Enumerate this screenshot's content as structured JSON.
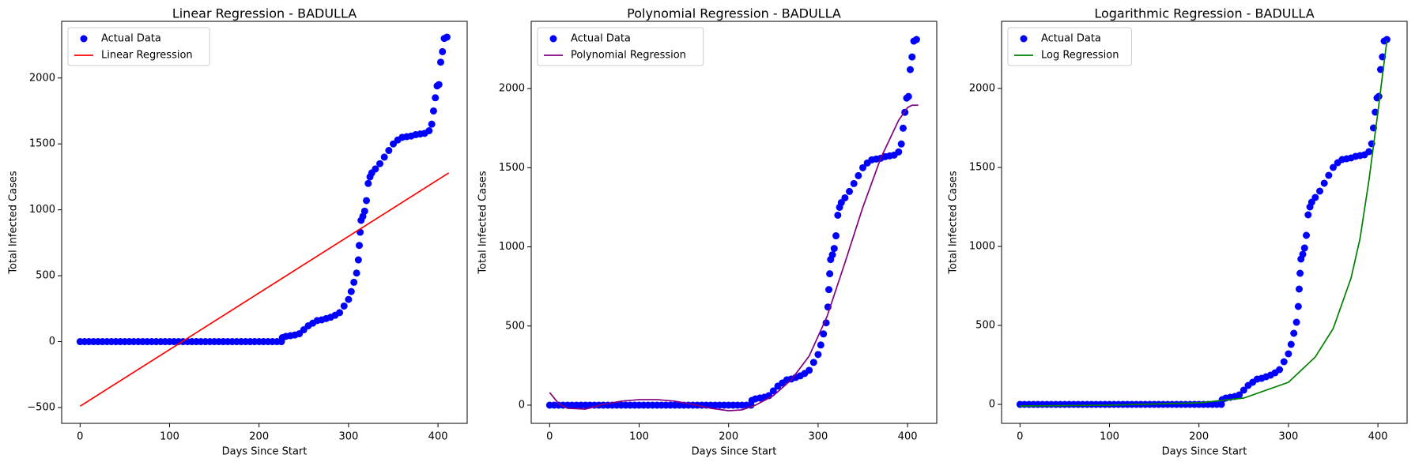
{
  "chart_data": [
    {
      "type": "scatter",
      "title": "Linear Regression - BADULLA",
      "x_label": "Days Since Start",
      "y_label": "Total Infected Cases",
      "xlim": [
        -20.6,
        432.6
      ],
      "ylim": [
        -620,
        2430
      ],
      "xticks": [
        0,
        100,
        200,
        300,
        400
      ],
      "yticks": [
        {
          "value": -500,
          "label": "−500"
        },
        0,
        500,
        1000,
        1500,
        2000
      ],
      "legend": "upper left",
      "series": [
        {
          "name": "Actual Data",
          "type": "scatter",
          "color": "#0000ff",
          "x": [
            0,
            5,
            10,
            15,
            20,
            25,
            30,
            35,
            40,
            45,
            50,
            55,
            60,
            65,
            70,
            75,
            80,
            85,
            90,
            95,
            100,
            105,
            110,
            115,
            120,
            125,
            130,
            135,
            140,
            145,
            150,
            155,
            160,
            165,
            170,
            175,
            180,
            185,
            190,
            195,
            200,
            205,
            210,
            215,
            220,
            225,
            226,
            230,
            235,
            240,
            245,
            250,
            255,
            260,
            265,
            270,
            275,
            280,
            285,
            290,
            295,
            300,
            303,
            306,
            309,
            311,
            312,
            313,
            314,
            316,
            318,
            320,
            322,
            324,
            326,
            330,
            335,
            340,
            345,
            350,
            355,
            360,
            365,
            370,
            375,
            380,
            385,
            390,
            393,
            395,
            397,
            399,
            401,
            403,
            405,
            407,
            410
          ],
          "values": [
            0,
            0,
            0,
            0,
            0,
            0,
            0,
            0,
            0,
            0,
            0,
            0,
            0,
            0,
            0,
            0,
            0,
            0,
            0,
            0,
            0,
            0,
            0,
            0,
            0,
            0,
            0,
            0,
            0,
            0,
            0,
            0,
            0,
            0,
            0,
            0,
            0,
            0,
            0,
            0,
            0,
            0,
            0,
            0,
            0,
            0,
            30,
            40,
            45,
            50,
            60,
            90,
            120,
            140,
            160,
            165,
            175,
            185,
            200,
            220,
            270,
            320,
            380,
            450,
            520,
            620,
            730,
            830,
            920,
            950,
            990,
            1070,
            1200,
            1250,
            1280,
            1310,
            1350,
            1400,
            1450,
            1500,
            1530,
            1550,
            1555,
            1560,
            1570,
            1575,
            1580,
            1600,
            1650,
            1750,
            1850,
            1940,
            1950,
            2120,
            2200,
            2300,
            2310
          ]
        },
        {
          "name": "Linear Regression",
          "type": "line",
          "color": "#ff0000",
          "x": [
            0,
            412
          ],
          "values": [
            -490,
            1280
          ]
        }
      ]
    },
    {
      "type": "scatter",
      "title": "Polynomial Regression - BADULLA",
      "x_label": "Days Since Start",
      "y_label": "Total Infected Cases",
      "xlim": [
        -20.6,
        432.6
      ],
      "ylim": [
        -115,
        2425
      ],
      "xticks": [
        0,
        100,
        200,
        300,
        400
      ],
      "yticks": [
        0,
        500,
        1000,
        1500,
        2000
      ],
      "legend": "upper left",
      "series": [
        {
          "name": "Actual Data",
          "type": "scatter",
          "color": "#0000ff",
          "x": [
            0,
            5,
            10,
            15,
            20,
            25,
            30,
            35,
            40,
            45,
            50,
            55,
            60,
            65,
            70,
            75,
            80,
            85,
            90,
            95,
            100,
            105,
            110,
            115,
            120,
            125,
            130,
            135,
            140,
            145,
            150,
            155,
            160,
            165,
            170,
            175,
            180,
            185,
            190,
            195,
            200,
            205,
            210,
            215,
            220,
            225,
            226,
            230,
            235,
            240,
            245,
            250,
            255,
            260,
            265,
            270,
            275,
            280,
            285,
            290,
            295,
            300,
            303,
            306,
            309,
            311,
            312,
            313,
            314,
            316,
            318,
            320,
            322,
            324,
            326,
            330,
            335,
            340,
            345,
            350,
            355,
            360,
            365,
            370,
            375,
            380,
            385,
            390,
            393,
            395,
            397,
            399,
            401,
            403,
            405,
            407,
            410
          ],
          "values": [
            0,
            0,
            0,
            0,
            0,
            0,
            0,
            0,
            0,
            0,
            0,
            0,
            0,
            0,
            0,
            0,
            0,
            0,
            0,
            0,
            0,
            0,
            0,
            0,
            0,
            0,
            0,
            0,
            0,
            0,
            0,
            0,
            0,
            0,
            0,
            0,
            0,
            0,
            0,
            0,
            0,
            0,
            0,
            0,
            0,
            0,
            30,
            40,
            45,
            50,
            60,
            90,
            120,
            140,
            160,
            165,
            175,
            185,
            200,
            220,
            270,
            320,
            380,
            450,
            520,
            620,
            730,
            830,
            920,
            950,
            990,
            1070,
            1200,
            1250,
            1280,
            1310,
            1350,
            1400,
            1450,
            1500,
            1530,
            1550,
            1555,
            1560,
            1570,
            1575,
            1580,
            1600,
            1650,
            1750,
            1850,
            1940,
            1950,
            2120,
            2200,
            2300,
            2310
          ]
        },
        {
          "name": "Polynomial Regression",
          "type": "line",
          "color": "#800080",
          "x": [
            0,
            10,
            20,
            40,
            60,
            80,
            100,
            120,
            140,
            160,
            180,
            200,
            215,
            230,
            250,
            270,
            290,
            310,
            330,
            350,
            370,
            390,
            400,
            405,
            412
          ],
          "values": [
            80,
            10,
            -20,
            -25,
            5,
            25,
            35,
            35,
            25,
            5,
            -20,
            -35,
            -30,
            0,
            60,
            160,
            310,
            560,
            900,
            1250,
            1560,
            1800,
            1880,
            1895,
            1895
          ]
        }
      ]
    },
    {
      "type": "scatter",
      "title": "Logarithmic Regression - BADULLA",
      "x_label": "Days Since Start",
      "y_label": "Total Infected Cases",
      "xlim": [
        -20.6,
        432.6
      ],
      "ylim": [
        -120,
        2425
      ],
      "xticks": [
        0,
        100,
        200,
        300,
        400
      ],
      "yticks": [
        0,
        500,
        1000,
        1500,
        2000
      ],
      "legend": "upper left",
      "series": [
        {
          "name": "Actual Data",
          "type": "scatter",
          "color": "#0000ff",
          "x": [
            0,
            5,
            10,
            15,
            20,
            25,
            30,
            35,
            40,
            45,
            50,
            55,
            60,
            65,
            70,
            75,
            80,
            85,
            90,
            95,
            100,
            105,
            110,
            115,
            120,
            125,
            130,
            135,
            140,
            145,
            150,
            155,
            160,
            165,
            170,
            175,
            180,
            185,
            190,
            195,
            200,
            205,
            210,
            215,
            220,
            225,
            226,
            230,
            235,
            240,
            245,
            250,
            255,
            260,
            265,
            270,
            275,
            280,
            285,
            290,
            295,
            300,
            303,
            306,
            309,
            311,
            312,
            313,
            314,
            316,
            318,
            320,
            322,
            324,
            326,
            330,
            335,
            340,
            345,
            350,
            355,
            360,
            365,
            370,
            375,
            380,
            385,
            390,
            393,
            395,
            397,
            399,
            401,
            403,
            405,
            407,
            410
          ],
          "values": [
            0,
            0,
            0,
            0,
            0,
            0,
            0,
            0,
            0,
            0,
            0,
            0,
            0,
            0,
            0,
            0,
            0,
            0,
            0,
            0,
            0,
            0,
            0,
            0,
            0,
            0,
            0,
            0,
            0,
            0,
            0,
            0,
            0,
            0,
            0,
            0,
            0,
            0,
            0,
            0,
            0,
            0,
            0,
            0,
            0,
            0,
            30,
            40,
            45,
            50,
            60,
            90,
            120,
            140,
            160,
            165,
            175,
            185,
            200,
            220,
            270,
            320,
            380,
            450,
            520,
            620,
            730,
            830,
            920,
            950,
            990,
            1070,
            1200,
            1250,
            1280,
            1310,
            1350,
            1400,
            1450,
            1500,
            1530,
            1550,
            1555,
            1560,
            1570,
            1575,
            1580,
            1600,
            1650,
            1750,
            1850,
            1940,
            1950,
            2120,
            2200,
            2300,
            2310
          ]
        },
        {
          "name": "Log Regression",
          "type": "line",
          "color": "#008000",
          "x": [
            0,
            100,
            200,
            250,
            300,
            330,
            350,
            370,
            380,
            390,
            400,
            405,
            410
          ],
          "values": [
            -10,
            -5,
            10,
            40,
            140,
            300,
            480,
            800,
            1050,
            1420,
            1850,
            2080,
            2300
          ]
        }
      ]
    }
  ]
}
